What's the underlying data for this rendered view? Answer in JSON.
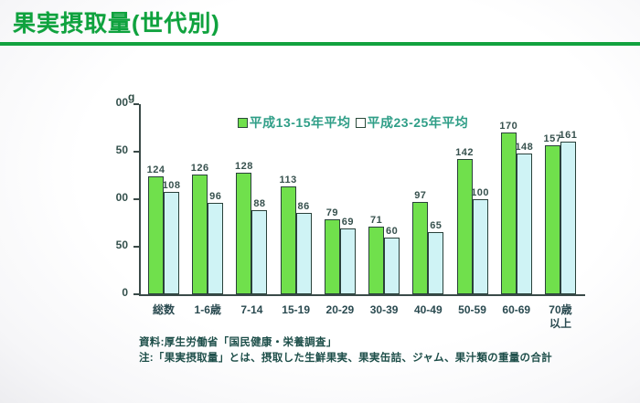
{
  "slide": {
    "title": "果実摂取量(世代別)"
  },
  "chart_data": {
    "type": "bar",
    "title": "果実摂取量(世代別)",
    "unit_label": "g",
    "xlabel": "",
    "ylabel": "g",
    "ylim": [
      0,
      200
    ],
    "ytick_interval": 50,
    "ytick_labels_visible": [
      "00",
      "50",
      "00",
      "50",
      "0"
    ],
    "grid": false,
    "legend_position": "top-center",
    "categories": [
      "総数",
      "1-6歳",
      "7-14",
      "15-19",
      "20-29",
      "30-39",
      "40-49",
      "50-59",
      "60-69",
      "70歳\n以上"
    ],
    "series": [
      {
        "name": "平成13-15年平均",
        "color": "#70e04c",
        "values": [
          124,
          126,
          128,
          113,
          79,
          71,
          97,
          142,
          170,
          157
        ]
      },
      {
        "name": "平成23-25年平均",
        "color": "#cff3f5",
        "values": [
          108,
          96,
          88,
          86,
          69,
          60,
          65,
          100,
          148,
          161
        ]
      }
    ]
  },
  "footnotes": {
    "source": "資料:厚生労働省「国民健康・栄養調査」",
    "note": "注:「果実摂取量」とは、摂取した生鮮果実、果実缶詰、ジャム、果汁類の重量の合計"
  },
  "colors": {
    "title_green": "#0fa23e",
    "rule_green": "#12a23f",
    "bar_green": "#70e04c",
    "bar_cyan": "#cff3f5",
    "bar_border": "#29413a",
    "axis": "#3a4a48",
    "legend_text": "#2f9e87",
    "value_text": "#37514e",
    "footnote_text": "#1d4e49"
  }
}
